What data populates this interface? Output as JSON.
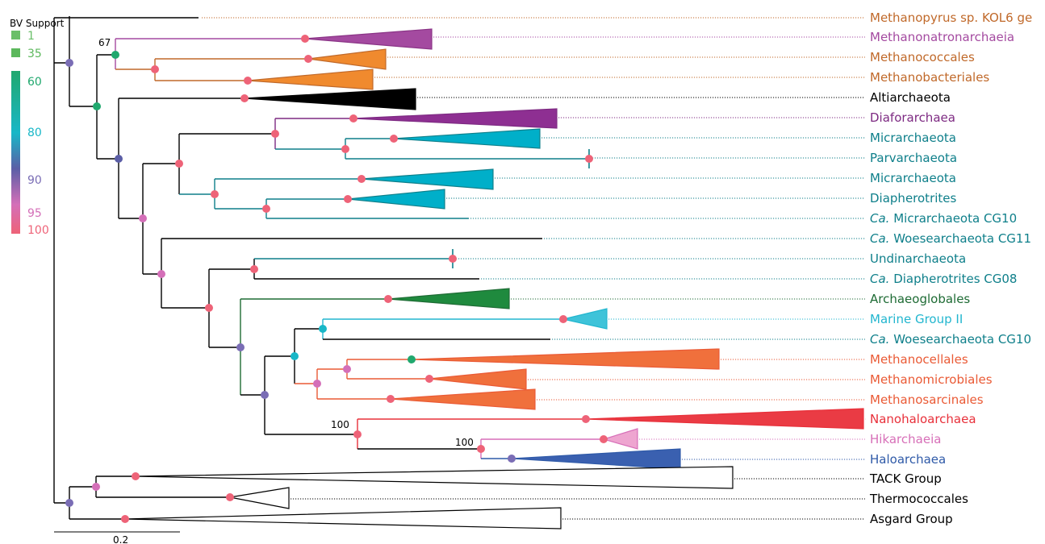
{
  "legend": {
    "title": "BV Support",
    "items": [
      {
        "label": "1",
        "color": "#6abf69"
      },
      {
        "label": "35",
        "color": "#5cb85c"
      }
    ],
    "gradient_labels": [
      {
        "label": "60",
        "color": "#20a86e"
      },
      {
        "label": "80",
        "color": "#18b7c7"
      },
      {
        "label": "90",
        "color": "#7a6db5"
      },
      {
        "label": "95",
        "color": "#d46fb8"
      },
      {
        "label": "100",
        "color": "#ee6378"
      }
    ]
  },
  "scale_bar": {
    "label": "0.2"
  },
  "support_labels": [
    "67",
    "100",
    "100"
  ],
  "taxa": [
    {
      "prefix": "",
      "name": "Methanopyrus sp. KOL6 ge",
      "color": "#c0692a"
    },
    {
      "prefix": "",
      "name": "Methanonatronarchaeia",
      "color": "#a44aa0"
    },
    {
      "prefix": "",
      "name": "Methanococcales",
      "color": "#c0692a"
    },
    {
      "prefix": "",
      "name": "Methanobacteriales",
      "color": "#c0692a"
    },
    {
      "prefix": "",
      "name": "Altiarchaeota",
      "color": "#000000"
    },
    {
      "prefix": "",
      "name": "Diaforarchaea",
      "color": "#7d2a82"
    },
    {
      "prefix": "",
      "name": "Micrarchaeota",
      "color": "#0e7f8a"
    },
    {
      "prefix": "",
      "name": "Parvarchaeota",
      "color": "#0e7f8a"
    },
    {
      "prefix": "",
      "name": "Micrarchaeota",
      "color": "#0e7f8a"
    },
    {
      "prefix": "",
      "name": "Diapherotrites",
      "color": "#0e7f8a"
    },
    {
      "prefix": "Ca.",
      "name": " Micrarchaeota CG10",
      "color": "#0e7f8a"
    },
    {
      "prefix": "Ca.",
      "name": " Woesearchaeota CG11",
      "color": "#0e7f8a"
    },
    {
      "prefix": "",
      "name": "Undinarchaeota",
      "color": "#0e7f8a"
    },
    {
      "prefix": "Ca.",
      "name": " Diapherotrites CG08",
      "color": "#0e7f8a"
    },
    {
      "prefix": "",
      "name": "Archaeoglobales",
      "color": "#1e6b34"
    },
    {
      "prefix": "",
      "name": "Marine Group II",
      "color": "#22b6cf"
    },
    {
      "prefix": "Ca.",
      "name": " Woesearchaeota CG10",
      "color": "#0e7f8a"
    },
    {
      "prefix": "",
      "name": "Methanocellales",
      "color": "#ea5a35"
    },
    {
      "prefix": "",
      "name": "Methanomicrobiales",
      "color": "#ea5a35"
    },
    {
      "prefix": "",
      "name": "Methanosarcinales",
      "color": "#ea5a35"
    },
    {
      "prefix": "",
      "name": "Nanohaloarchaea",
      "color": "#e8303a"
    },
    {
      "prefix": "",
      "name": "Hikarchaeia",
      "color": "#d76fb8"
    },
    {
      "prefix": "",
      "name": "Haloarchaea",
      "color": "#2f5aa8"
    },
    {
      "prefix": "",
      "name": "TACK Group",
      "color": "#000000"
    },
    {
      "prefix": "",
      "name": "Thermococcales",
      "color": "#000000"
    },
    {
      "prefix": "",
      "name": "Asgard Group",
      "color": "#000000"
    }
  ]
}
